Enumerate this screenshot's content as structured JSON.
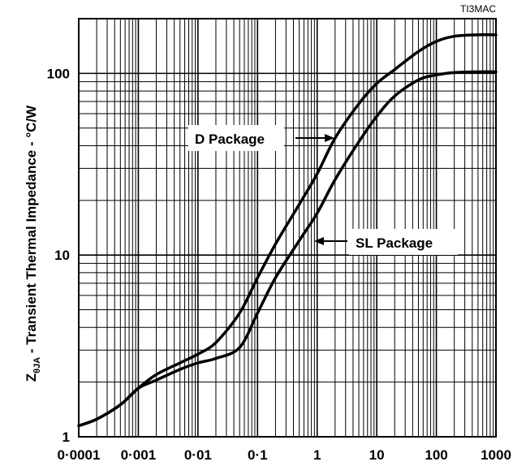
{
  "chart_data": {
    "type": "line",
    "title": "",
    "corner_id": "TI3MAC",
    "xscale": "log",
    "yscale": "log",
    "xlim": [
      0.0001,
      1000
    ],
    "ylim": [
      1,
      200
    ],
    "grid": true,
    "ylabel": {
      "symbol": "Z",
      "subscript": "θJA",
      "text": " - Transient Thermal Impedance - °C/W"
    },
    "xticks": [
      {
        "value": 0.0001,
        "label": "0·0001"
      },
      {
        "value": 0.001,
        "label": "0·001"
      },
      {
        "value": 0.01,
        "label": "0·01"
      },
      {
        "value": 0.1,
        "label": "0·1"
      },
      {
        "value": 1,
        "label": "1"
      },
      {
        "value": 10,
        "label": "10"
      },
      {
        "value": 100,
        "label": "100"
      },
      {
        "value": 1000,
        "label": "1000"
      }
    ],
    "yticks": [
      {
        "value": 1,
        "label": "1"
      },
      {
        "value": 10,
        "label": "10"
      },
      {
        "value": 100,
        "label": "100"
      }
    ],
    "series": [
      {
        "name": "D Package",
        "x": [
          0.0001,
          0.0002,
          0.0005,
          0.001,
          0.002,
          0.005,
          0.01,
          0.02,
          0.05,
          0.1,
          0.2,
          0.5,
          1,
          2,
          5,
          10,
          20,
          50,
          100,
          200,
          500,
          1000
        ],
        "y": [
          1.15,
          1.25,
          1.5,
          1.85,
          2.2,
          2.55,
          2.85,
          3.3,
          4.8,
          7.5,
          11.5,
          19,
          28,
          44,
          68,
          88,
          105,
          132,
          150,
          160,
          163,
          163
        ]
      },
      {
        "name": "SL Package",
        "x": [
          0.0001,
          0.0002,
          0.0005,
          0.001,
          0.002,
          0.005,
          0.01,
          0.02,
          0.05,
          0.1,
          0.2,
          0.5,
          1,
          2,
          5,
          10,
          20,
          50,
          100,
          200,
          500,
          1000
        ],
        "y": [
          1.15,
          1.25,
          1.5,
          1.85,
          2.05,
          2.35,
          2.55,
          2.7,
          3.1,
          4.8,
          7.5,
          12,
          17,
          26,
          42,
          58,
          75,
          92,
          98,
          101,
          102,
          102
        ]
      }
    ],
    "annotations": [
      {
        "text": "D Package",
        "series": "D Package"
      },
      {
        "text": "SL Package",
        "series": "SL Package"
      }
    ]
  }
}
